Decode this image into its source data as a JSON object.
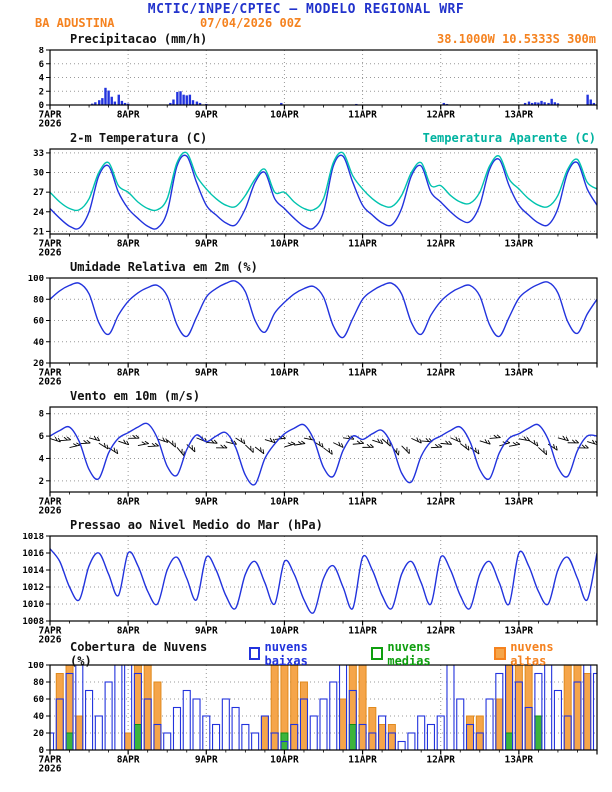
{
  "header": {
    "title": "MCTIC/INPE/CPTEC — MODELO REGIONAL WRF",
    "station": "BA ADUSTINA",
    "run_datetime": "07/04/2026 00Z",
    "location": "38.1000W 10.5333S 300m"
  },
  "colors": {
    "title_blue": "#2233cc",
    "orange": "#f5821f",
    "line_blue": "#2233dd",
    "cyan": "#00c3ae",
    "green": "#0f9f0f",
    "cloud_orange_fill": "#f5a54a"
  },
  "x_axis": {
    "tick_labels": [
      "7APR",
      "8APR",
      "9APR",
      "10APR",
      "11APR",
      "12APR",
      "13APR"
    ],
    "year_label": "2026",
    "ndays": 7,
    "step_days": 0.125
  },
  "chart_data": [
    {
      "id": "precipitation",
      "type": "bar",
      "title": "Precipitacao (mm/h)",
      "ylim": [
        0,
        8
      ],
      "yticks": [
        0,
        2,
        4,
        6,
        8
      ],
      "color": "#2233dd",
      "bars": [
        [
          0.54,
          0.2
        ],
        [
          0.58,
          0.4
        ],
        [
          0.63,
          0.7
        ],
        [
          0.67,
          1.0
        ],
        [
          0.71,
          2.5
        ],
        [
          0.75,
          2.1
        ],
        [
          0.79,
          1.2
        ],
        [
          0.83,
          0.5
        ],
        [
          0.88,
          1.5
        ],
        [
          0.92,
          0.6
        ],
        [
          0.96,
          0.3
        ],
        [
          1.0,
          0.2
        ],
        [
          1.54,
          0.3
        ],
        [
          1.58,
          0.8
        ],
        [
          1.63,
          1.9
        ],
        [
          1.67,
          2.0
        ],
        [
          1.71,
          1.5
        ],
        [
          1.75,
          1.4
        ],
        [
          1.79,
          1.5
        ],
        [
          1.83,
          0.7
        ],
        [
          1.88,
          0.5
        ],
        [
          1.92,
          0.3
        ],
        [
          2.0,
          0.15
        ],
        [
          2.96,
          0.3
        ],
        [
          3.92,
          0.15
        ],
        [
          5.04,
          0.3
        ],
        [
          5.08,
          0.15
        ],
        [
          6.08,
          0.3
        ],
        [
          6.13,
          0.5
        ],
        [
          6.17,
          0.3
        ],
        [
          6.21,
          0.4
        ],
        [
          6.25,
          0.35
        ],
        [
          6.29,
          0.6
        ],
        [
          6.33,
          0.4
        ],
        [
          6.38,
          0.3
        ],
        [
          6.42,
          0.9
        ],
        [
          6.46,
          0.4
        ],
        [
          6.5,
          0.25
        ],
        [
          6.88,
          1.5
        ],
        [
          6.92,
          0.8
        ],
        [
          6.96,
          0.3
        ]
      ]
    },
    {
      "id": "temperature",
      "type": "line",
      "title": "2-m Temperatura (C)",
      "right_label": "Temperatura Aparente (C)",
      "ylim": [
        20.6,
        33.6
      ],
      "yticks": [
        21,
        24,
        27,
        30,
        33
      ],
      "x_step_days": 0.125,
      "series": [
        {
          "name": "2-m Temperatura (C)",
          "color": "#2233dd",
          "values": [
            24.5,
            23,
            21.8,
            21.5,
            24,
            29.5,
            31,
            27,
            24.5,
            23,
            21.8,
            21.5,
            24,
            31,
            32.5,
            28.5,
            25,
            23.5,
            22.3,
            22,
            24.5,
            28.5,
            30,
            26,
            24.5,
            23,
            21.8,
            21.5,
            24,
            31,
            32.5,
            28.5,
            25,
            23.5,
            22.3,
            22,
            24.5,
            29.5,
            31,
            27,
            25.5,
            24,
            22.8,
            22.5,
            25,
            30.5,
            32,
            28,
            25,
            23.5,
            22.3,
            22,
            24.5,
            30,
            31.5,
            27.5,
            25
          ]
        },
        {
          "name": "Temperatura Aparente (C)",
          "color": "#00c3ae",
          "values": [
            27,
            25.5,
            24.5,
            24.3,
            26,
            30,
            31.5,
            28,
            27,
            25.5,
            24.5,
            24.3,
            26,
            31.5,
            33,
            29.5,
            27.5,
            26,
            25,
            24.8,
            26.5,
            29,
            30.5,
            27,
            27,
            25.5,
            24.5,
            24.3,
            26,
            31.5,
            33,
            29.5,
            27.5,
            26,
            25,
            24.8,
            26.5,
            30,
            31.5,
            28,
            28,
            26.5,
            25.5,
            25.3,
            27,
            31,
            32.5,
            29,
            27.5,
            26,
            25,
            24.8,
            26.5,
            30.5,
            32,
            28.5,
            27.5
          ]
        }
      ]
    },
    {
      "id": "humidity",
      "type": "line",
      "title": "Umidade Relativa em 2m (%)",
      "ylim": [
        20,
        100
      ],
      "yticks": [
        20,
        40,
        60,
        80,
        100
      ],
      "x_step_days": 0.125,
      "series": [
        {
          "name": "Umidade Relativa em 2m (%)",
          "color": "#2233dd",
          "values": [
            80,
            88,
            93,
            95,
            85,
            58,
            47,
            65,
            78,
            86,
            91,
            93,
            83,
            56,
            45,
            63,
            82,
            90,
            95,
            97,
            87,
            60,
            49,
            67,
            77,
            85,
            90,
            92,
            82,
            55,
            44,
            62,
            80,
            88,
            93,
            95,
            85,
            58,
            47,
            65,
            78,
            86,
            91,
            93,
            83,
            56,
            45,
            63,
            81,
            89,
            94,
            96,
            86,
            59,
            48,
            66,
            80
          ]
        }
      ]
    },
    {
      "id": "wind",
      "type": "line",
      "title": "Vento em 10m (m/s)",
      "ylim": [
        1,
        8.6
      ],
      "yticks": [
        2,
        4,
        6,
        8
      ],
      "x_step_days": 0.125,
      "barbs": true,
      "barb_level": 5.4,
      "series": [
        {
          "name": "Vento em 10m (m/s)",
          "color": "#2233dd",
          "values": [
            6,
            6.5,
            6.8,
            5.5,
            3,
            2.2,
            4.5,
            5.8,
            6.3,
            6.8,
            7.1,
            5.8,
            3.3,
            2.5,
            4.8,
            6.1,
            5.5,
            6,
            6.3,
            5,
            2.5,
            1.7,
            4,
            5.3,
            6.2,
            6.7,
            7,
            5.7,
            3.2,
            2.4,
            4.7,
            6,
            5.7,
            6.2,
            6.5,
            5.2,
            2.7,
            1.9,
            4.2,
            5.5,
            6,
            6.5,
            6.8,
            5.5,
            3,
            2.2,
            4.5,
            5.8,
            6.2,
            6.7,
            7,
            5.7,
            3.2,
            2.4,
            4.7,
            6,
            6
          ]
        }
      ]
    },
    {
      "id": "pressure",
      "type": "line",
      "title": "Pressao ao Nivel Medio do Mar (hPa)",
      "ylim": [
        1008,
        1018
      ],
      "yticks": [
        1008,
        1010,
        1012,
        1014,
        1016,
        1018
      ],
      "x_step_days": 0.125,
      "series": [
        {
          "name": "Pressao ao Nivel Medio do Mar (hPa)",
          "color": "#2233dd",
          "values": [
            1016.5,
            1015,
            1012,
            1010.5,
            1014.5,
            1016,
            1013.5,
            1011,
            1016,
            1014.5,
            1011.5,
            1010,
            1014,
            1015.5,
            1013,
            1010.5,
            1015.5,
            1014,
            1011,
            1009.5,
            1013.5,
            1015,
            1012.5,
            1010,
            1015,
            1013.5,
            1010.5,
            1009,
            1013,
            1014.5,
            1012,
            1009.5,
            1015.5,
            1014,
            1011,
            1009.5,
            1013.5,
            1015,
            1012.5,
            1010,
            1015.5,
            1014,
            1011,
            1009.5,
            1013.5,
            1015,
            1012.5,
            1010,
            1016,
            1014.5,
            1011.5,
            1010,
            1014,
            1015.5,
            1013,
            1010.5,
            1016
          ]
        }
      ]
    },
    {
      "id": "clouds",
      "type": "cloud-bars",
      "title": "Cobertura de Nuvens (%)",
      "ylim": [
        0,
        100
      ],
      "yticks": [
        0,
        20,
        40,
        60,
        80,
        100
      ],
      "x_step_days": 0.125,
      "series": [
        {
          "name": "nuvens baixas",
          "color": "#2233dd",
          "values": [
            20,
            60,
            90,
            100,
            70,
            40,
            80,
            100,
            100,
            90,
            60,
            30,
            20,
            50,
            70,
            60,
            40,
            30,
            60,
            50,
            30,
            20,
            40,
            20,
            10,
            30,
            60,
            40,
            60,
            80,
            100,
            70,
            30,
            20,
            40,
            20,
            10,
            20,
            40,
            30,
            40,
            100,
            60,
            30,
            20,
            60,
            90,
            100,
            80,
            50,
            90,
            100,
            70,
            40,
            80,
            100,
            90
          ]
        },
        {
          "name": "nuvens medias",
          "color": "#0f9f0f",
          "values": [
            0,
            0,
            20,
            0,
            0,
            0,
            0,
            0,
            0,
            30,
            0,
            0,
            0,
            0,
            0,
            0,
            0,
            0,
            0,
            0,
            0,
            0,
            0,
            0,
            20,
            0,
            0,
            0,
            0,
            0,
            0,
            30,
            0,
            0,
            0,
            0,
            0,
            0,
            0,
            0,
            0,
            0,
            0,
            0,
            0,
            0,
            0,
            20,
            0,
            0,
            40,
            0,
            0,
            0,
            0,
            0,
            0
          ]
        },
        {
          "name": "nuvens altas",
          "color": "#f5821f",
          "values": [
            0,
            90,
            100,
            40,
            0,
            0,
            0,
            0,
            20,
            100,
            100,
            80,
            0,
            0,
            0,
            0,
            0,
            0,
            0,
            0,
            0,
            0,
            40,
            100,
            100,
            100,
            80,
            0,
            0,
            0,
            60,
            100,
            100,
            50,
            30,
            30,
            0,
            0,
            0,
            0,
            0,
            0,
            0,
            40,
            40,
            0,
            60,
            100,
            100,
            100,
            40,
            0,
            0,
            100,
            100,
            90,
            0
          ]
        }
      ]
    }
  ]
}
